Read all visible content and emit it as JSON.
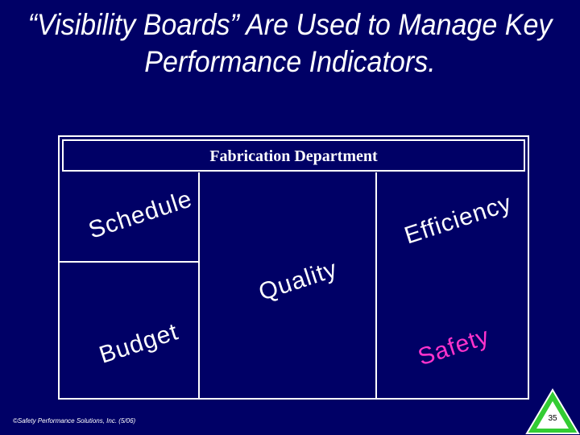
{
  "slide": {
    "title_line1": "“Visibility Boards” Are Used to Manage Key",
    "title_line2": "Performance Indicators.",
    "board_header": "Fabrication Department",
    "words": {
      "schedule": "Schedule",
      "efficiency": "Efficiency",
      "quality": "Quality",
      "budget": "Budget",
      "safety": "Safety"
    },
    "footer": "©Safety Performance Solutions, Inc. (5/06)",
    "page_number": "35"
  },
  "colors": {
    "background": "#000066",
    "text": "#ffffff",
    "safety": "#ff33cc",
    "logo_green": "#33cc33"
  },
  "icons": {
    "logo": "triangle-logo-icon"
  }
}
